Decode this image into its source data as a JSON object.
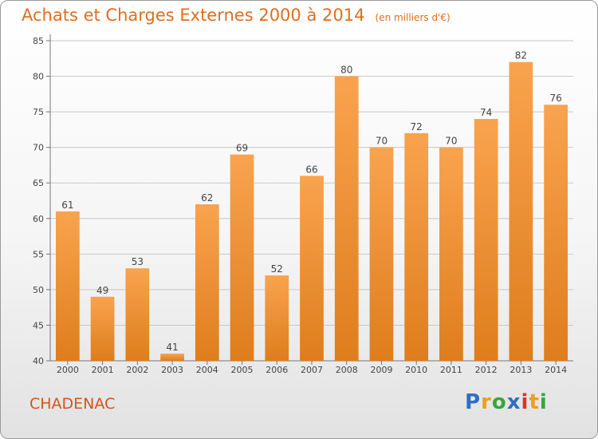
{
  "header": {
    "title": "Achats et Charges Externes 2000 à 2014",
    "unit": "(en milliers d'€)"
  },
  "footer": {
    "commune": "CHADENAC",
    "logo_text": "Proxiti",
    "logo_colors": [
      "#2f6fbf",
      "#e8a020",
      "#3aa53a",
      "#2f6fbf",
      "#d9342b",
      "#e8a020",
      "#3aa53a"
    ]
  },
  "colors": {
    "bar_light": "#f9a34f",
    "bar_dark": "#de7d1c",
    "title": "#e06e1e",
    "commune": "#d4551c",
    "grid": "#c8c8c8"
  },
  "chart_data": {
    "type": "bar",
    "title": "Achats et Charges Externes 2000 à 2014",
    "subtitle": "(en milliers d'€)",
    "categories": [
      "2000",
      "2001",
      "2002",
      "2003",
      "2004",
      "2005",
      "2006",
      "2007",
      "2008",
      "2009",
      "2010",
      "2011",
      "2012",
      "2013",
      "2014"
    ],
    "values": [
      61,
      49,
      53,
      41,
      62,
      69,
      52,
      66,
      80,
      70,
      72,
      70,
      74,
      82,
      76
    ],
    "ylim": [
      40,
      85
    ],
    "yticks": [
      40,
      45,
      50,
      55,
      60,
      65,
      70,
      75,
      80,
      85
    ],
    "grid": true,
    "data_labels": true
  }
}
